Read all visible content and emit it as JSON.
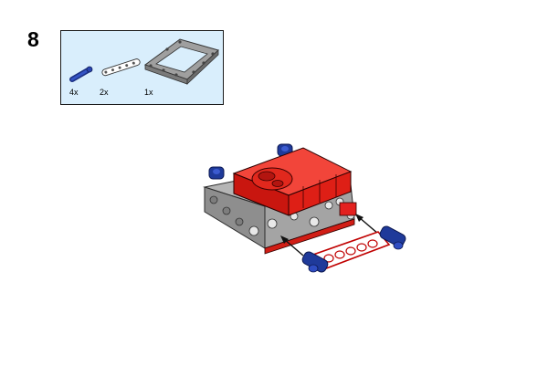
{
  "step": {
    "number": "8"
  },
  "parts_list": {
    "items": [
      {
        "name": "blue-axle-pin",
        "quantity": "4x",
        "color": "#1f3a9a"
      },
      {
        "name": "white-beam",
        "quantity": "2x",
        "color": "#ffffff"
      },
      {
        "name": "gray-frame",
        "quantity": "1x",
        "color": "#a8a8a8"
      }
    ],
    "background": "#d9eefc"
  },
  "model": {
    "hub_color": "#e3211f",
    "frame_color": "#a4a4a4",
    "pin_color": "#1f3a9a",
    "beam_color": "#ffffff",
    "arrow_icon": "arrow-icon"
  }
}
